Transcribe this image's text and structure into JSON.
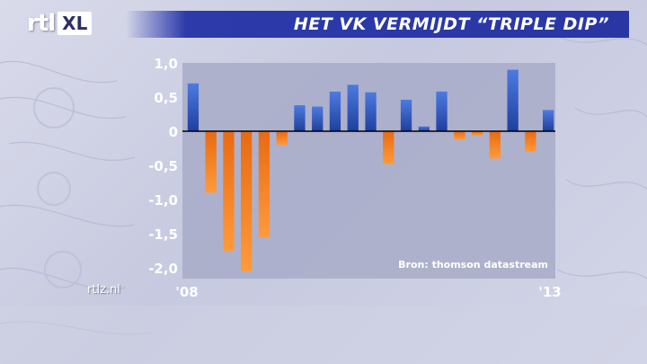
{
  "header": {
    "logo_rtl": "rtl",
    "logo_xl": "XL",
    "title": "HET VK VERMIJDT “TRIPLE DIP”"
  },
  "footer": {
    "site": "rtlz.nl"
  },
  "chart_data": {
    "type": "bar",
    "title": "HET VK VERMIJDT “TRIPLE DIP”",
    "xlabel": "",
    "ylabel": "",
    "ylim": [
      -2.0,
      1.0
    ],
    "y_ticks": [
      "1,0",
      "0,5",
      "0",
      "-0,5",
      "-1,0",
      "-1,5",
      "-2,0"
    ],
    "y_tick_values": [
      1.0,
      0.5,
      0,
      -0.5,
      -1.0,
      -1.5,
      -2.0
    ],
    "x_tick_labels": [
      "'08",
      "'13"
    ],
    "grid": false,
    "source": "Bron: thomson datastream",
    "positive_color": "#3a62c9",
    "negative_color": "#f07a1a",
    "values": [
      0.7,
      -0.9,
      -1.75,
      -2.05,
      -1.55,
      -0.2,
      0.38,
      0.36,
      0.58,
      0.68,
      0.57,
      -0.48,
      0.46,
      0.07,
      0.58,
      -0.12,
      -0.06,
      -0.4,
      0.9,
      -0.3,
      0.31
    ]
  }
}
